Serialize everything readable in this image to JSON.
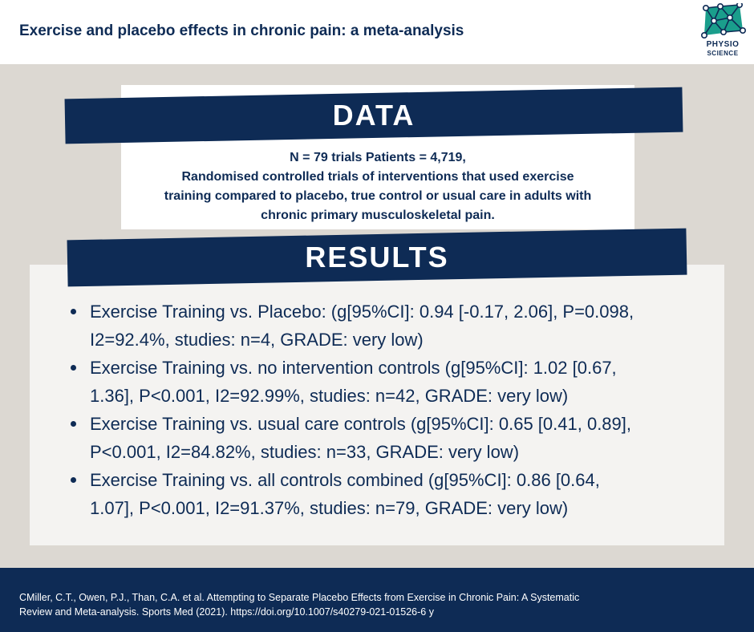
{
  "header": {
    "title": "Exercise and placebo effects in chronic pain: a meta-analysis",
    "logo_line1": "PHYSIO",
    "logo_line2": "SCIENCE"
  },
  "data_section": {
    "heading": "DATA",
    "lines": [
      "N = 79 trials  Patients = 4,719,",
      "Randomised controlled trials of interventions that used exercise",
      "training compared to placebo, true control or usual care in adults with",
      "chronic primary musculoskeletal pain."
    ]
  },
  "results_section": {
    "heading": "RESULTS",
    "items": [
      {
        "line1": "Exercise Training vs. Placebo: (g[95%CI]: 0.94 [-0.17, 2.06], P=0.098,",
        "line2": "I2=92.4%, studies: n=4, GRADE: very low)"
      },
      {
        "line1": "Exercise Training vs. no intervention controls (g[95%CI]: 1.02 [0.67,",
        "line2": "1.36], P<0.001, I2=92.99%, studies: n=42, GRADE: very low)"
      },
      {
        "line1": "Exercise Training vs. usual care controls (g[95%CI]: 0.65 [0.41, 0.89],",
        "line2": "P<0.001, I2=84.82%, studies: n=33, GRADE: very low)"
      },
      {
        "line1": "Exercise Training vs. all controls combined (g[95%CI]: 0.86 [0.64,",
        "line2": "1.07], P<0.001, I2=91.37%, studies: n=79, GRADE: very low)"
      }
    ]
  },
  "footer": {
    "lines": [
      "CMiller, C.T., Owen, P.J., Than, C.A. et al. Attempting to Separate Placebo Effects from Exercise in Chronic Pain: A Systematic",
      "Review and Meta-analysis. Sports Med (2021). https://doi.org/10.1007/s40279-021-01526-6 y"
    ]
  },
  "colors": {
    "navy": "#0e2b55",
    "teal": "#1a9e8c",
    "page_background": "#dcd8d2",
    "results_card": "#f4f3f1"
  },
  "icons": {
    "logo": "molecule-network-icon"
  }
}
